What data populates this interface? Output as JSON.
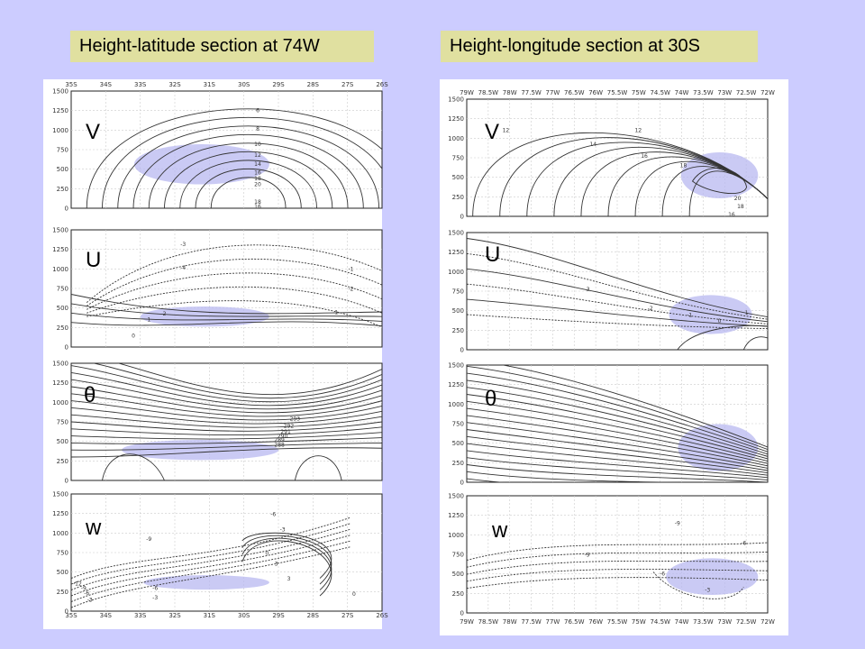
{
  "titles": {
    "left": "Height-latitude section at 74W",
    "right": "Height-longitude section at 30S"
  },
  "chart_data": [
    {
      "type": "contour",
      "figure": "left",
      "title": "Height-latitude section at 74W",
      "x_ticks": [
        "35S",
        "34S",
        "33S",
        "32S",
        "31S",
        "30S",
        "29S",
        "28S",
        "27S",
        "26S"
      ],
      "y_ticks": [
        "0",
        "250",
        "500",
        "750",
        "1000",
        "1250",
        "1500"
      ],
      "xlim": [
        -35,
        -26
      ],
      "ylim": [
        0,
        1500
      ],
      "panels": [
        {
          "variable": "V",
          "contour_labels": [
            "6",
            "8",
            "10",
            "12",
            "14",
            "16",
            "18",
            "20",
            "18",
            "16"
          ]
        },
        {
          "variable": "U",
          "contour_labels": [
            "-3",
            "-4",
            "-1",
            "-2",
            "-1",
            "0",
            "1",
            "2"
          ]
        },
        {
          "variable": "θ",
          "contour_labels": [
            "293",
            "292",
            "291",
            "290",
            "289",
            "288"
          ]
        },
        {
          "variable": "w",
          "contour_labels": [
            "-6",
            "-3",
            "-9",
            "0",
            "3",
            "3",
            "-12",
            "-9",
            "-6",
            "-3",
            "-6",
            "-3",
            "0"
          ]
        }
      ]
    },
    {
      "type": "contour",
      "figure": "right",
      "title": "Height-longitude section at 30S",
      "x_ticks": [
        "79W",
        "78.5W",
        "78W",
        "77.5W",
        "77W",
        "76.5W",
        "76W",
        "75.5W",
        "75W",
        "74.5W",
        "74W",
        "73.5W",
        "73W",
        "72.5W",
        "72W"
      ],
      "y_ticks": [
        "0",
        "250",
        "500",
        "750",
        "1000",
        "1250",
        "1500"
      ],
      "xlim": [
        -79,
        -72
      ],
      "ylim": [
        0,
        1500
      ],
      "panels": [
        {
          "variable": "V",
          "contour_labels": [
            "12",
            "12",
            "14",
            "16",
            "18",
            "20",
            "18",
            "16"
          ]
        },
        {
          "variable": "U",
          "contour_labels": [
            "-3",
            "-2",
            "-1",
            "0",
            "1"
          ]
        },
        {
          "variable": "θ",
          "contour_labels": []
        },
        {
          "variable": "w",
          "contour_labels": [
            "-9",
            "-9",
            "-6",
            "-6",
            "-3"
          ]
        }
      ]
    }
  ]
}
